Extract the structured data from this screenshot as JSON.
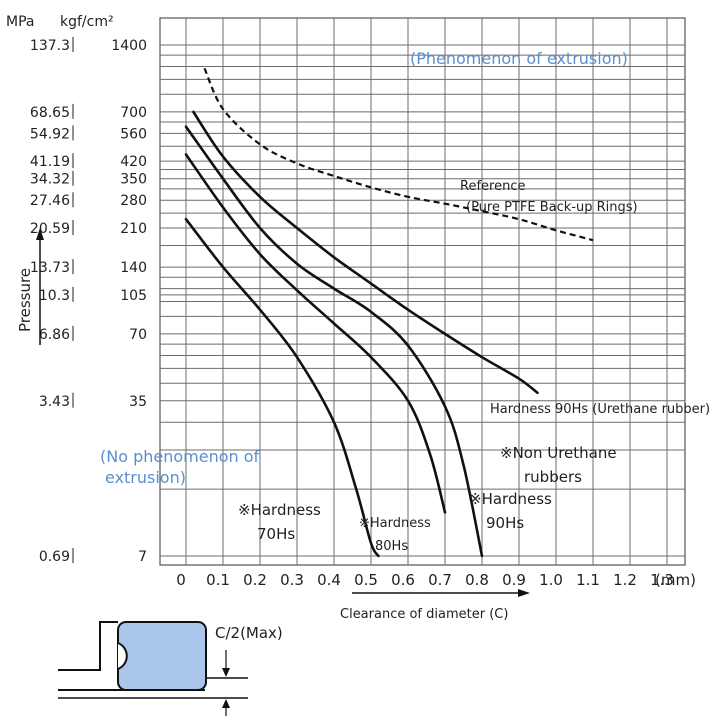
{
  "chart_data": {
    "type": "line",
    "title": "",
    "xlabel": "Clearance of diameter (C)",
    "ylabel": "Pressure",
    "x_unit": "(mm)",
    "y_units": [
      "MPa",
      "kgf/cm²"
    ],
    "xlim": [
      0,
      1.35
    ],
    "ylim_kgf": [
      7,
      1400
    ],
    "y_scale": "log",
    "grid": true,
    "x_ticks": [
      "0",
      "0.1",
      "0.2",
      "0.3",
      "0.4",
      "0.5",
      "0.6",
      "0.7",
      "0.8",
      "0.9",
      "1.0",
      "1.1",
      "1.2",
      "1.3"
    ],
    "y_ticks": [
      {
        "mpa": "0.69",
        "kgf": "7"
      },
      {
        "mpa": "3.43",
        "kgf": "35"
      },
      {
        "mpa": "6.86",
        "kgf": "70"
      },
      {
        "mpa": "10.3",
        "kgf": "105"
      },
      {
        "mpa": "13.73",
        "kgf": "140"
      },
      {
        "mpa": "20.59",
        "kgf": "210"
      },
      {
        "mpa": "27.46",
        "kgf": "280"
      },
      {
        "mpa": "34.32",
        "kgf": "350"
      },
      {
        "mpa": "41.19",
        "kgf": "420"
      },
      {
        "mpa": "54.92",
        "kgf": "560"
      },
      {
        "mpa": "68.65",
        "kgf": "700"
      },
      {
        "mpa": "137.3",
        "kgf": "1400"
      }
    ],
    "series": [
      {
        "name": "※Hardness 70Hs",
        "x": [
          0.0,
          0.1,
          0.2,
          0.3,
          0.4,
          0.46,
          0.5,
          0.52
        ],
        "y_kgf": [
          230,
          140,
          90,
          55,
          28,
          14,
          8,
          7
        ]
      },
      {
        "name": "※Hardness 80Hs",
        "x": [
          0.0,
          0.1,
          0.2,
          0.3,
          0.4,
          0.5,
          0.6,
          0.66,
          0.7
        ],
        "y_kgf": [
          450,
          260,
          160,
          110,
          78,
          55,
          35,
          20,
          11
        ]
      },
      {
        "name": "※Hardness 90Hs",
        "x": [
          0.0,
          0.1,
          0.2,
          0.3,
          0.4,
          0.5,
          0.6,
          0.7,
          0.75,
          0.8
        ],
        "y_kgf": [
          600,
          350,
          210,
          145,
          112,
          88,
          62,
          33,
          18,
          7
        ]
      },
      {
        "name": "Hardness 90Hs (Urethane rubber)",
        "x": [
          0.02,
          0.1,
          0.2,
          0.3,
          0.4,
          0.5,
          0.6,
          0.7,
          0.8,
          0.9,
          0.95
        ],
        "y_kgf": [
          700,
          440,
          290,
          210,
          155,
          118,
          90,
          70,
          55,
          44,
          38
        ]
      },
      {
        "name": "Reference (Pure PTFE Back-up Rings)",
        "dashed": true,
        "x": [
          0.05,
          0.1,
          0.2,
          0.3,
          0.4,
          0.5,
          0.6,
          0.7,
          0.8,
          0.9,
          1.0,
          1.1
        ],
        "y_kgf": [
          1100,
          720,
          500,
          410,
          360,
          320,
          290,
          270,
          250,
          230,
          205,
          185
        ]
      }
    ]
  },
  "annotations": {
    "extrusion": "(Phenomenon of extrusion)",
    "no_extrusion_1": "(No phenomenon of",
    "no_extrusion_2": "extrusion)",
    "reference_1": "Reference",
    "reference_2": "(Pure PTFE Back-up Rings)",
    "urethane": "Hardness 90Hs (Urethane rubber)",
    "non_urethane_1": "※Non Urethane",
    "non_urethane_2": "rubbers",
    "h70_1": "※Hardness",
    "h70_2": "70Hs",
    "h80_1": "※Hardness",
    "h80_2": "80Hs",
    "h90_1": "※Hardness",
    "h90_2": "90Hs"
  },
  "diagram": {
    "c_label": "C/2(Max)",
    "seal_color": "#a9c6ea"
  }
}
